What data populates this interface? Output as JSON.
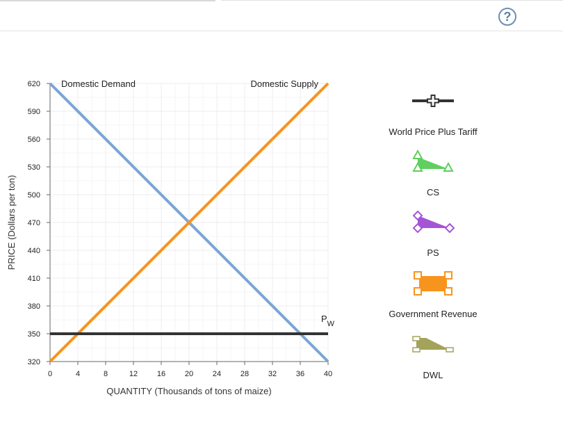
{
  "help": {
    "label": "?"
  },
  "chart_data": {
    "type": "line",
    "xlabel": "QUANTITY (Thousands of tons of maize)",
    "ylabel": "PRICE (Dollars per ton)",
    "xlim": [
      0,
      40
    ],
    "ylim": [
      320,
      620
    ],
    "x_ticks": [
      0,
      4,
      8,
      12,
      16,
      20,
      24,
      28,
      32,
      36,
      40
    ],
    "y_ticks": [
      320,
      350,
      380,
      410,
      440,
      470,
      500,
      530,
      560,
      590,
      620
    ],
    "grid": true,
    "series": [
      {
        "name": "Domestic Demand",
        "color": "#7ba6d4",
        "x": [
          0,
          40
        ],
        "y": [
          620,
          320
        ]
      },
      {
        "name": "Domestic Supply",
        "color": "#f7941d",
        "x": [
          0,
          40
        ],
        "y": [
          320,
          620
        ]
      },
      {
        "name": "PW",
        "color": "#333333",
        "x": [
          0,
          40
        ],
        "y": [
          350,
          350
        ]
      }
    ],
    "pw_label": {
      "main": "P",
      "sub": "W"
    }
  },
  "palette": [
    {
      "label": "World Price Plus Tariff",
      "icon": "cross-line-icon",
      "color": "#333333"
    },
    {
      "label": "CS",
      "icon": "triangle-icon",
      "color": "#5fcf5f"
    },
    {
      "label": "PS",
      "icon": "diamond-icon",
      "color": "#a654d6"
    },
    {
      "label": "Government Revenue",
      "icon": "square-icon",
      "color": "#f7941d"
    },
    {
      "label": "DWL",
      "icon": "trapezoid-icon",
      "color": "#a3a35a"
    }
  ]
}
